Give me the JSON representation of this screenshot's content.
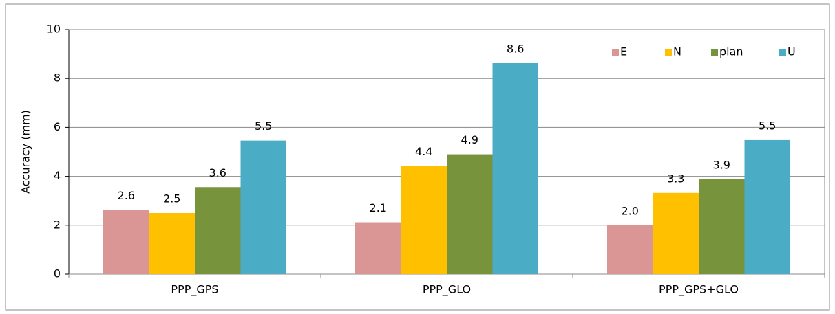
{
  "chart_data": {
    "type": "bar",
    "y_label": "Accuracy (mm)",
    "categories": [
      "PPP_GPS",
      "PPP_GLO",
      "PPP_GPS+GLO"
    ],
    "series": [
      {
        "name": "E",
        "color": "#d99694",
        "values": [
          2.62,
          2.12,
          2.0
        ],
        "value_labels": [
          "2.6",
          "2.1",
          "2.0"
        ]
      },
      {
        "name": "N",
        "color": "#ffc000",
        "values": [
          2.5,
          4.43,
          3.32
        ],
        "value_labels": [
          "2.5",
          "4.4",
          "3.3"
        ]
      },
      {
        "name": "plan",
        "color": "#77933c",
        "values": [
          3.56,
          4.9,
          3.88
        ],
        "value_labels": [
          "3.6",
          "4.9",
          "3.9"
        ]
      },
      {
        "name": "U",
        "color": "#4bacc6",
        "values": [
          5.46,
          8.63,
          5.48
        ],
        "value_labels": [
          "5.5",
          "8.6",
          "5.5"
        ]
      }
    ],
    "ylim": [
      0,
      10
    ],
    "yticks": [
      0,
      2,
      4,
      6,
      8,
      10
    ],
    "grid": true,
    "legend": "top-right"
  }
}
